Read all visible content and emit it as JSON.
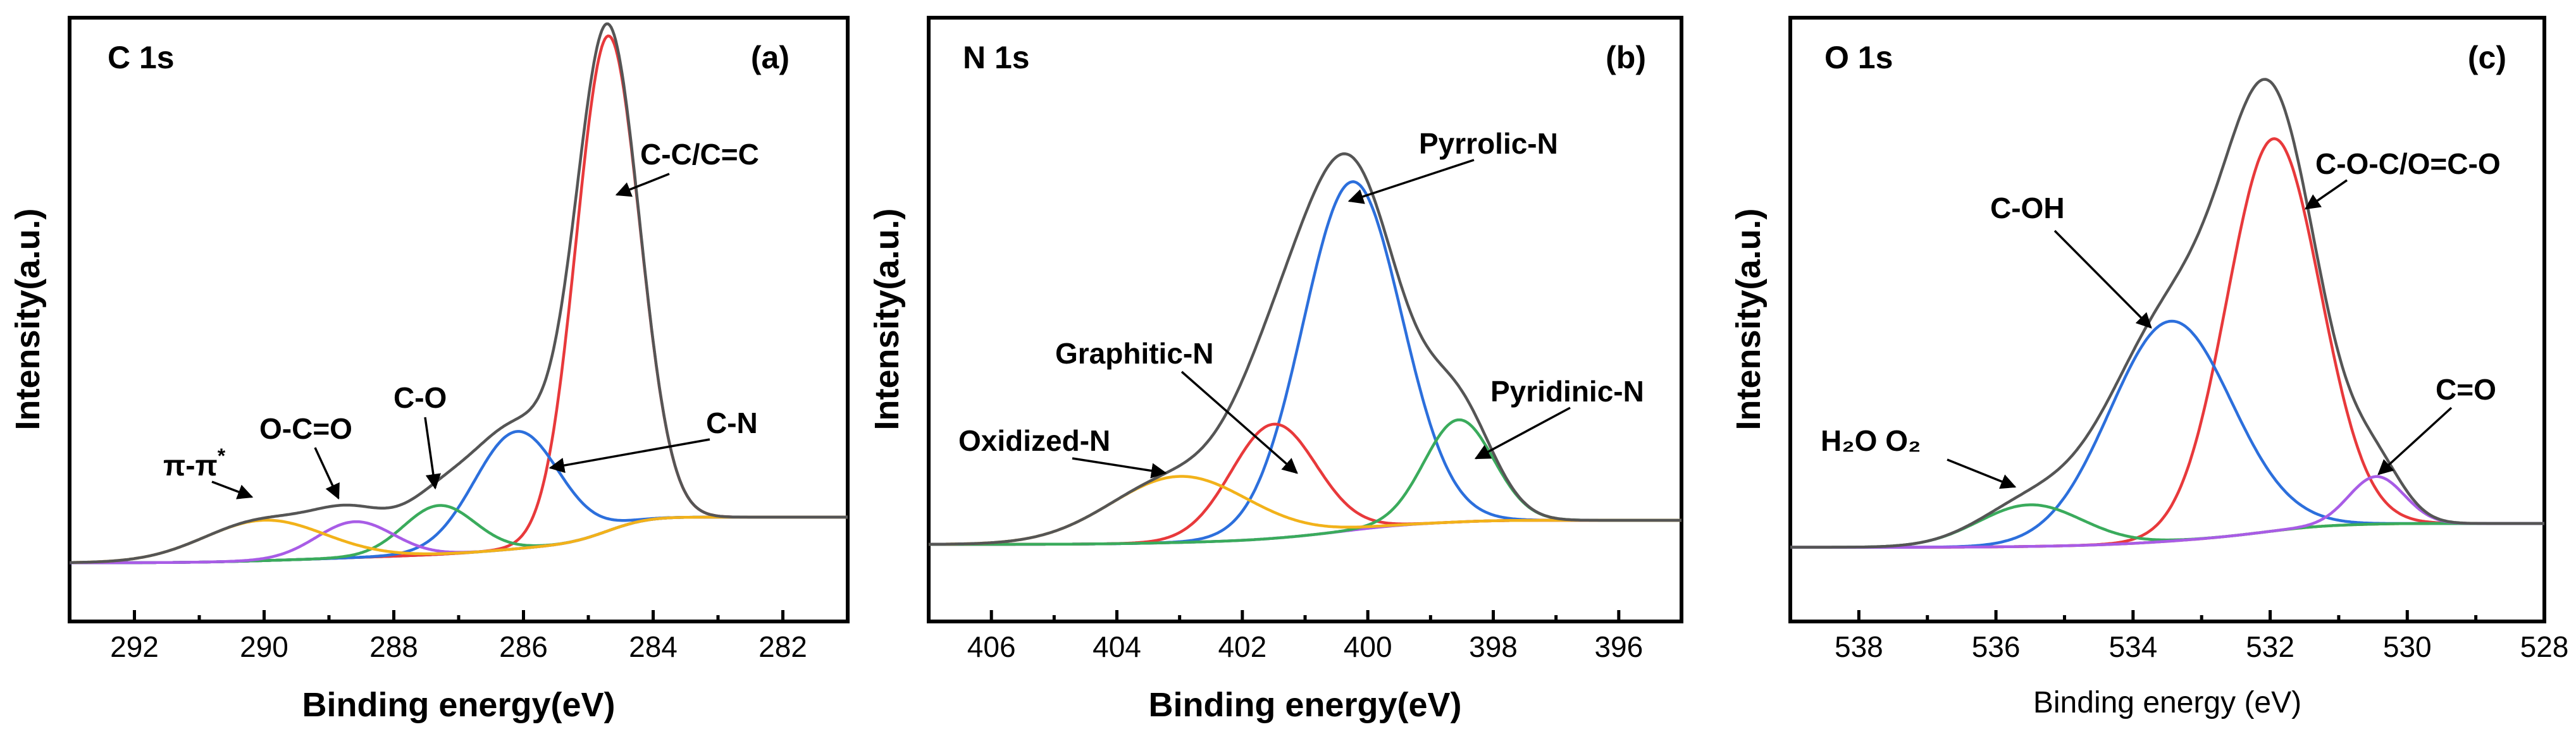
{
  "chart_data": [
    {
      "type": "line",
      "panel": "(a)",
      "title": "C 1s",
      "xlabel": "Binding energy(eV)",
      "ylabel": "Intensity(a.u.)",
      "xlim": [
        293,
        281
      ],
      "x_reversed": true,
      "ylim": [
        0,
        100
      ],
      "xticks": [
        292,
        290,
        288,
        286,
        284,
        282
      ],
      "series": [
        {
          "name": "Envelope",
          "color": "#555555",
          "role": "envelope"
        },
        {
          "name": "C-C/C=C",
          "color": "#e8393b",
          "center": 284.7,
          "height": 76,
          "fwhm": 1.15
        },
        {
          "name": "C-N",
          "color": "#2c6fdc",
          "center": 286.1,
          "height": 18,
          "fwhm": 1.55
        },
        {
          "name": "C-O",
          "color": "#3aab5c",
          "center": 287.3,
          "height": 7.5,
          "fwhm": 1.3
        },
        {
          "name": "O-C=O",
          "color": "#a85ce6",
          "center": 288.6,
          "height": 5.5,
          "fwhm": 1.4
        },
        {
          "name": "π-π*",
          "color": "#f2b21a",
          "center": 290.0,
          "height": 6.2,
          "fwhm": 2.2
        },
        {
          "name": "Background",
          "color": "#22b8c8",
          "role": "background",
          "high": 0,
          "low": -7
        }
      ],
      "annotations": [
        {
          "label": "C-C/C=C",
          "target": "C-C/C=C"
        },
        {
          "label": "C-N",
          "target": "C-N"
        },
        {
          "label": "C-O",
          "target": "C-O"
        },
        {
          "label": "O-C=O",
          "target": "O-C=O"
        },
        {
          "label": "π-π",
          "sup": "*",
          "target": "π-π*"
        }
      ]
    },
    {
      "type": "line",
      "panel": "(b)",
      "title": "N 1s",
      "xlabel": "Binding energy(eV)",
      "ylabel": "Intensity(a.u.)",
      "xlim": [
        407,
        395
      ],
      "x_reversed": true,
      "ylim": [
        0,
        100
      ],
      "xticks": [
        406,
        404,
        402,
        400,
        398,
        396
      ],
      "series": [
        {
          "name": "Envelope",
          "color": "#555555",
          "role": "envelope"
        },
        {
          "name": "Pyrrolic-N",
          "color": "#2c6fdc",
          "center": 400.25,
          "height": 58,
          "fwhm": 1.85
        },
        {
          "name": "Graphitic-N",
          "color": "#e8393b",
          "center": 401.5,
          "height": 19,
          "fwhm": 1.6
        },
        {
          "name": "Pyridinic-N",
          "color": "#3aab5c",
          "center": 398.55,
          "height": 17,
          "fwhm": 1.3
        },
        {
          "name": "Oxidized-N",
          "color": "#f2b21a",
          "center": 403.0,
          "height": 11,
          "fwhm": 2.6
        },
        {
          "name": "Background",
          "color": "#a85ce6",
          "role": "background",
          "high": 0,
          "low": -4
        }
      ],
      "annotations": [
        {
          "label": "Pyrrolic-N",
          "target": "Pyrrolic-N"
        },
        {
          "label": "Graphitic-N",
          "target": "Graphitic-N"
        },
        {
          "label": "Pyridinic-N",
          "target": "Pyridinic-N"
        },
        {
          "label": "Oxidized-N",
          "target": "Oxidized-N"
        }
      ]
    },
    {
      "type": "line",
      "panel": "(c)",
      "title": "O 1s",
      "xlabel": "Binding energy (eV)",
      "ylabel": "Intensity(a.u.)",
      "xlim": [
        539,
        528
      ],
      "x_reversed": true,
      "ylim": [
        0,
        100
      ],
      "xticks": [
        538,
        536,
        534,
        532,
        530,
        528
      ],
      "series": [
        {
          "name": "Envelope",
          "color": "#555555",
          "role": "envelope"
        },
        {
          "name": "C-O-C/O=C-O",
          "color": "#e8393b",
          "center": 531.95,
          "height": 66,
          "fwhm": 1.6
        },
        {
          "name": "C-OH",
          "color": "#2c6fdc",
          "center": 533.45,
          "height": 37,
          "fwhm": 2.1
        },
        {
          "name": "H2O O2",
          "color": "#3aab5c",
          "center": 535.5,
          "height": 7,
          "fwhm": 1.8
        },
        {
          "name": "C=O",
          "color": "#a85ce6",
          "center": 530.45,
          "height": 8,
          "fwhm": 0.95
        },
        {
          "name": "Background",
          "color": "#f2b21a",
          "role": "background",
          "high": 0,
          "low": -4
        }
      ],
      "annotations": [
        {
          "label": "C-O-C/O=C-O",
          "target": "C-O-C/O=C-O"
        },
        {
          "label": "C-OH",
          "target": "C-OH"
        },
        {
          "label": "H₂O O₂",
          "target": "H2O O2"
        },
        {
          "label": "C=O",
          "target": "C=O"
        }
      ]
    }
  ]
}
